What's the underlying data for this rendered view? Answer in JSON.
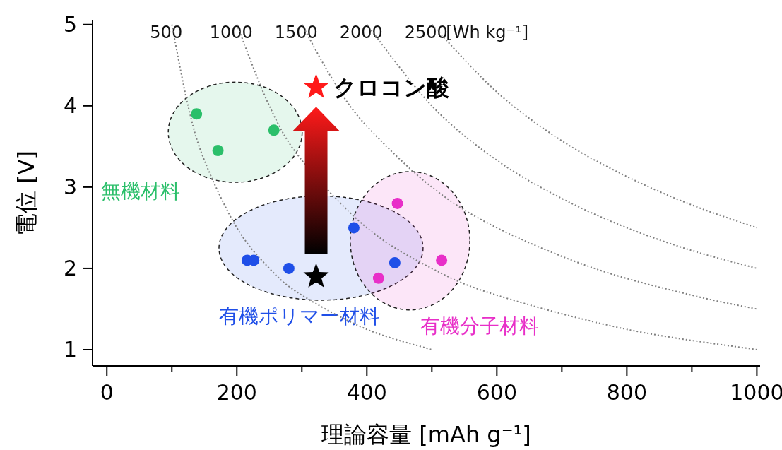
{
  "chart_data": {
    "type": "scatter",
    "xlabel": "理論容量 [mAh g⁻¹]",
    "ylabel": "電位 [V]",
    "xlim": [
      -22,
      1005
    ],
    "ylim": [
      0.8,
      5.05
    ],
    "xticks": [
      0,
      {
        "value": 100,
        "label": null
      },
      200,
      {
        "value": 300,
        "label": null
      },
      400,
      {
        "value": 500,
        "label": null
      },
      600,
      {
        "value": 700,
        "label": null
      },
      800,
      {
        "value": 900,
        "label": null
      },
      1000
    ],
    "yticks": [
      1,
      2,
      3,
      4,
      5
    ],
    "grid": false,
    "legend": false,
    "annotations": [
      "[Wh kg⁻¹]"
    ],
    "series": [
      {
        "name": "500",
        "type": "line",
        "line_style": "dotted",
        "marker": "none",
        "color": "#808080",
        "x": [
          100,
          125,
          150,
          200,
          250,
          300,
          400,
          500
        ],
        "values": [
          5,
          4,
          3.33,
          2.5,
          2,
          1.67,
          1.25,
          1
        ]
      },
      {
        "name": "1000",
        "type": "line",
        "line_style": "dotted",
        "marker": "none",
        "color": "#808080",
        "x": [
          200,
          250,
          300,
          400,
          500,
          600,
          800,
          1000
        ],
        "values": [
          5,
          4,
          3.33,
          2.5,
          2,
          1.67,
          1.25,
          1
        ]
      },
      {
        "name": "1500",
        "type": "line",
        "line_style": "dotted",
        "marker": "none",
        "color": "#808080",
        "x": [
          300,
          350,
          400,
          500,
          600,
          750,
          900,
          1000
        ],
        "values": [
          5,
          4.29,
          3.75,
          3,
          2.5,
          2,
          1.67,
          1.5
        ]
      },
      {
        "name": "2000",
        "type": "line",
        "line_style": "dotted",
        "marker": "none",
        "color": "#808080",
        "x": [
          400,
          500,
          600,
          700,
          800,
          900,
          1000
        ],
        "values": [
          5,
          4,
          3.33,
          2.86,
          2.5,
          2.22,
          2
        ]
      },
      {
        "name": "2500",
        "type": "line",
        "line_style": "dotted",
        "marker": "none",
        "color": "#808080",
        "x": [
          500,
          600,
          700,
          800,
          900,
          1000
        ],
        "values": [
          5,
          4.17,
          3.57,
          3.13,
          2.78,
          2.5
        ]
      },
      {
        "name": "無機材料",
        "marker": "circle",
        "color": "#2bbf6a",
        "x": [
          138,
          171,
          257
        ],
        "values": [
          3.9,
          3.45,
          3.7
        ]
      },
      {
        "name": "有機ポリマー材料",
        "marker": "circle",
        "color": "#1f4fe8",
        "x": [
          216,
          226,
          280,
          380,
          443
        ],
        "values": [
          2.1,
          2.1,
          2.0,
          2.5,
          2.07
        ]
      },
      {
        "name": "有機分子材料",
        "marker": "circle",
        "color": "#e82fc8",
        "x": [
          447,
          418,
          515
        ],
        "values": [
          2.8,
          1.88,
          2.1
        ]
      },
      {
        "marker": "star",
        "color": "#000000",
        "x": [
          322
        ],
        "values": [
          1.9
        ]
      },
      {
        "name": "クロコン酸",
        "marker": "star",
        "color": "#ff1a1a",
        "x": [
          322
        ],
        "values": [
          4.23
        ]
      }
    ]
  }
}
